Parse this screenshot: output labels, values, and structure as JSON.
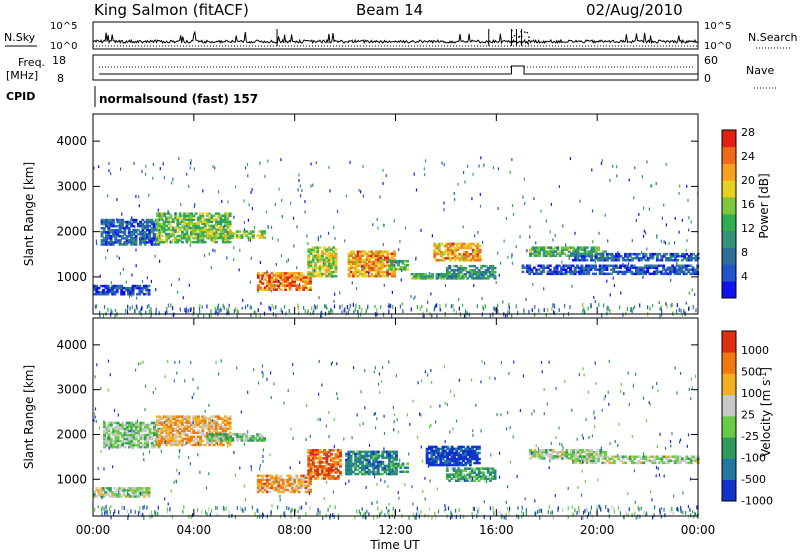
{
  "header": {
    "station": "King Salmon (fitACF)",
    "beam": "Beam 14",
    "date": "02/Aug/2010"
  },
  "top_panels": {
    "nsky_label": "N.Sky",
    "nsearch_label": "N.Search",
    "nsky_ticks": [
      "10^5",
      "10^0"
    ],
    "freq_label_1": "Freq.",
    "freq_label_2": "[MHz]",
    "freq_ticks": [
      "18",
      "8"
    ],
    "nave_label": "Nave",
    "nave_ticks": [
      "60",
      "0"
    ],
    "cpid_label": "CPID",
    "cpid_value": "normalsound (fast) 157",
    "noise_spikes_hours": [
      7.3,
      15.7,
      16.6,
      16.8,
      17.0
    ]
  },
  "chart_data": [
    {
      "type": "heatmap",
      "panel": "power",
      "ylabel": "Slant Range [km]",
      "xlabel": "",
      "y_ticks": [
        1000,
        2000,
        3000,
        4000
      ],
      "ylim": [
        180,
        4600
      ],
      "xlim_hours": [
        0,
        24
      ],
      "colorbar": {
        "label": "Power [dB]",
        "ticks": [
          "4",
          "8",
          "12",
          "16",
          "20",
          "24",
          "28"
        ],
        "range": [
          0,
          30
        ],
        "colors": [
          "#1111ee",
          "#2255cc",
          "#2f6f9a",
          "#33927a",
          "#2fae4e",
          "#7cc83a",
          "#e8d020",
          "#f6a21e",
          "#f06a1a",
          "#e02010"
        ]
      },
      "echo_regions": [
        {
          "t0": 0.3,
          "t1": 2.6,
          "r0": 1700,
          "r1": 2250,
          "level": 0.2
        },
        {
          "t0": 2.5,
          "t1": 5.4,
          "r0": 1750,
          "r1": 2400,
          "level": 0.5
        },
        {
          "t0": 4.5,
          "t1": 6.8,
          "r0": 1850,
          "r1": 2000,
          "level": 0.55
        },
        {
          "t0": 6.5,
          "t1": 8.6,
          "r0": 700,
          "r1": 1100,
          "level": 0.8
        },
        {
          "t0": 8.5,
          "t1": 9.6,
          "r0": 1000,
          "r1": 1650,
          "level": 0.6
        },
        {
          "t0": 10.1,
          "t1": 11.9,
          "r0": 1000,
          "r1": 1550,
          "level": 0.75
        },
        {
          "t0": 11.7,
          "t1": 12.5,
          "r0": 1150,
          "r1": 1350,
          "level": 0.5
        },
        {
          "t0": 12.6,
          "t1": 14.5,
          "r0": 950,
          "r1": 1050,
          "level": 0.45
        },
        {
          "t0": 13.5,
          "t1": 15.3,
          "r0": 1350,
          "r1": 1750,
          "level": 0.75
        },
        {
          "t0": 14.0,
          "t1": 15.9,
          "r0": 950,
          "r1": 1250,
          "level": 0.35
        },
        {
          "t0": 17.3,
          "t1": 20.3,
          "r0": 1450,
          "r1": 1650,
          "level": 0.45
        },
        {
          "t0": 19.0,
          "t1": 24.0,
          "r0": 1350,
          "r1": 1500,
          "level": 0.2
        },
        {
          "t0": 17.0,
          "t1": 24.0,
          "r0": 1050,
          "r1": 1250,
          "level": 0.15
        },
        {
          "t0": 0.0,
          "t1": 2.2,
          "r0": 600,
          "r1": 800,
          "level": 0.15
        }
      ]
    },
    {
      "type": "heatmap",
      "panel": "velocity",
      "ylabel": "Slant Range [km]",
      "xlabel": "Time UT",
      "x_ticks": [
        "00:00",
        "04:00",
        "08:00",
        "12:00",
        "16:00",
        "20:00",
        "00:00"
      ],
      "y_ticks": [
        1000,
        2000,
        3000,
        4000
      ],
      "ylim": [
        180,
        4600
      ],
      "xlim_hours": [
        0,
        24
      ],
      "colorbar": {
        "label": "Velocity [m s^-1]",
        "ticks": [
          "1000",
          "500",
          "100",
          "25",
          "-25",
          "-100",
          "-500",
          "-1000"
        ],
        "colors": [
          "#1133cc",
          "#2277a0",
          "#2f9a5a",
          "#66cc44",
          "#c8c8c8",
          "#f2b020",
          "#f07a10",
          "#e03010"
        ]
      },
      "echo_regions": [
        {
          "t0": 0.4,
          "t1": 2.6,
          "r0": 1700,
          "r1": 2250,
          "level": 0.45
        },
        {
          "t0": 2.5,
          "t1": 5.4,
          "r0": 1750,
          "r1": 2400,
          "level": 0.7
        },
        {
          "t0": 4.5,
          "t1": 6.8,
          "r0": 1850,
          "r1": 2000,
          "level": 0.45
        },
        {
          "t0": 6.5,
          "t1": 8.6,
          "r0": 700,
          "r1": 1100,
          "level": 0.72
        },
        {
          "t0": 8.5,
          "t1": 9.8,
          "r0": 1000,
          "r1": 1650,
          "level": 0.85
        },
        {
          "t0": 10.0,
          "t1": 12.0,
          "r0": 1100,
          "r1": 1600,
          "level": 0.25
        },
        {
          "t0": 11.7,
          "t1": 12.5,
          "r0": 1150,
          "r1": 1350,
          "level": 0.3
        },
        {
          "t0": 13.2,
          "t1": 15.3,
          "r0": 1300,
          "r1": 1750,
          "level": 0.05
        },
        {
          "t0": 14.0,
          "t1": 15.9,
          "r0": 950,
          "r1": 1250,
          "level": 0.35
        },
        {
          "t0": 17.3,
          "t1": 20.3,
          "r0": 1450,
          "r1": 1650,
          "level": 0.5
        },
        {
          "t0": 19.0,
          "t1": 24.0,
          "r0": 1350,
          "r1": 1500,
          "level": 0.5
        },
        {
          "t0": 0.0,
          "t1": 2.2,
          "r0": 600,
          "r1": 800,
          "level": 0.5
        }
      ]
    }
  ]
}
